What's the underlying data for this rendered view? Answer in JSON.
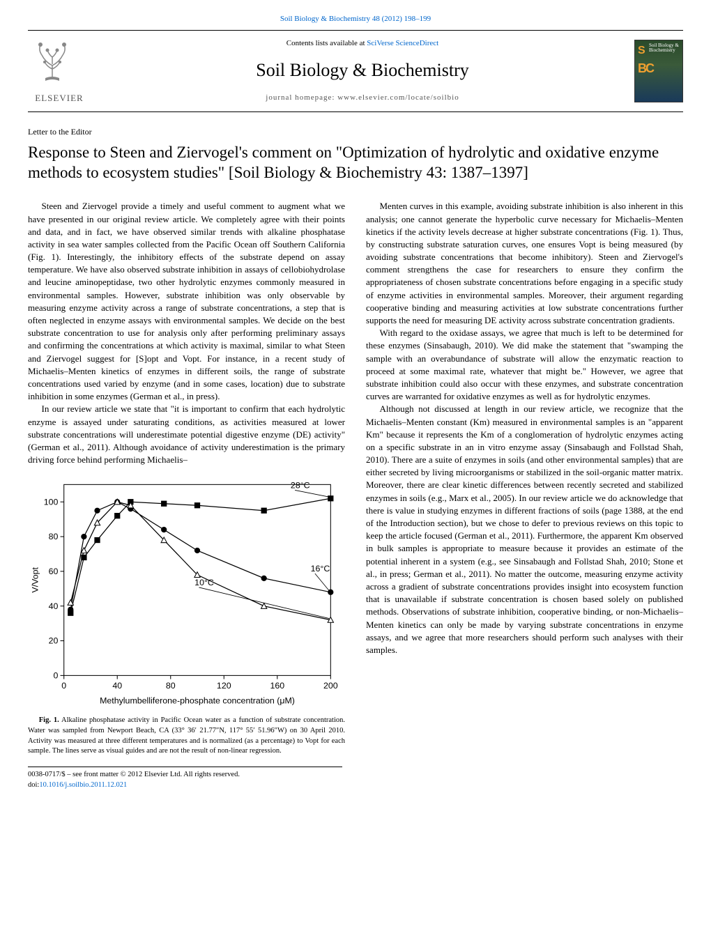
{
  "header": {
    "citation": "Soil Biology & Biochemistry 48 (2012) 198–199",
    "citation_link": "Soil Biology & Biochemistry 48 (2012) 198–199",
    "contents_prefix": "Contents lists available at ",
    "contents_link": "SciVerse ScienceDirect",
    "journal_title": "Soil Biology & Biochemistry",
    "homepage_label": "journal homepage: ",
    "homepage_url": "www.elsevier.com/locate/soilbio",
    "publisher": "ELSEVIER"
  },
  "article": {
    "type": "Letter to the Editor",
    "title": "Response to Steen and Ziervogel's comment on \"Optimization of hydrolytic and oxidative enzyme methods to ecosystem studies\" [Soil Biology & Biochemistry 43: 1387–1397]"
  },
  "body": {
    "left": {
      "p1": "Steen and Ziervogel provide a timely and useful comment to augment what we have presented in our original review article. We completely agree with their points and data, and in fact, we have observed similar trends with alkaline phosphatase activity in sea water samples collected from the Pacific Ocean off Southern California (Fig. 1). Interestingly, the inhibitory effects of the substrate depend on assay temperature. We have also observed substrate inhibition in assays of cellobiohydrolase and leucine aminopeptidase, two other hydrolytic enzymes commonly measured in environmental samples. However, substrate inhibition was only observable by measuring enzyme activity across a range of substrate concentrations, a step that is often neglected in enzyme assays with environmental samples. We decide on the best substrate concentration to use for analysis only after performing preliminary assays and confirming the concentrations at which activity is maximal, similar to what Steen and Ziervogel suggest for [S]opt and Vopt. For instance, in a recent study of Michaelis–Menten kinetics of enzymes in different soils, the range of substrate concentrations used varied by enzyme (and in some cases, location) due to substrate inhibition in some enzymes (German et al., in press).",
      "p2": "In our review article we state that \"it is important to confirm that each hydrolytic enzyme is assayed under saturating conditions, as activities measured at lower substrate concentrations will underestimate potential digestive enzyme (DE) activity\" (German et al., 2011). Although avoidance of activity underestimation is the primary driving force behind performing Michaelis–"
    },
    "right": {
      "p1": "Menten curves in this example, avoiding substrate inhibition is also inherent in this analysis; one cannot generate the hyperbolic curve necessary for Michaelis–Menten kinetics if the activity levels decrease at higher substrate concentrations (Fig. 1). Thus, by constructing substrate saturation curves, one ensures Vopt is being measured (by avoiding substrate concentrations that become inhibitory). Steen and Ziervogel's comment strengthens the case for researchers to ensure they confirm the appropriateness of chosen substrate concentrations before engaging in a specific study of enzyme activities in environmental samples. Moreover, their argument regarding cooperative binding and measuring activities at low substrate concentrations further supports the need for measuring DE activity across substrate concentration gradients.",
      "p2": "With regard to the oxidase assays, we agree that much is left to be determined for these enzymes (Sinsabaugh, 2010). We did make the statement that \"swamping the sample with an overabundance of substrate will allow the enzymatic reaction to proceed at some maximal rate, whatever that might be.\" However, we agree that substrate inhibition could also occur with these enzymes, and substrate concentration curves are warranted for oxidative enzymes as well as for hydrolytic enzymes.",
      "p3": "Although not discussed at length in our review article, we recognize that the Michaelis–Menten constant (Km) measured in environmental samples is an \"apparent Km\" because it represents the Km of a conglomeration of hydrolytic enzymes acting on a specific substrate in an in vitro enzyme assay (Sinsabaugh and Follstad Shah, 2010). There are a suite of enzymes in soils (and other environmental samples) that are either secreted by living microorganisms or stabilized in the soil-organic matter matrix. Moreover, there are clear kinetic differences between recently secreted and stabilized enzymes in soils (e.g., Marx et al., 2005). In our review article we do acknowledge that there is value in studying enzymes in different fractions of soils (page 1388, at the end of the Introduction section), but we chose to defer to previous reviews on this topic to keep the article focused (German et al., 2011). Furthermore, the apparent Km observed in bulk samples is appropriate to measure because it provides an estimate of the potential inherent in a system (e.g., see Sinsabaugh and Follstad Shah, 2010; Stone et al., in press; German et al., 2011). No matter the outcome, measuring enzyme activity across a gradient of substrate concentrations provides insight into ecosystem function that is unavailable if substrate concentration is chosen based solely on published methods. Observations of substrate inhibition, cooperative binding, or non-Michaelis–Menten kinetics can only be made by varying substrate concentrations in enzyme assays, and we agree that more researchers should perform such analyses with their samples."
    }
  },
  "figure": {
    "label": "Fig. 1.",
    "caption": "Alkaline phosphatase activity in Pacific Ocean water as a function of substrate concentration. Water was sampled from Newport Beach, CA (33° 36′ 21.77″N, 117° 55′ 51.96″W) on 30 April 2010. Activity was measured at three different temperatures and is normalized (as a percentage) to Vopt for each sample. The lines serve as visual guides and are not the result of non-linear regression.",
    "chart": {
      "type": "line-scatter",
      "xlabel": "Methylumbelliferone-phosphate concentration (μM)",
      "ylabel": "V/Vopt",
      "xlim": [
        0,
        200
      ],
      "ylim": [
        0,
        110
      ],
      "xticks": [
        0,
        40,
        80,
        120,
        160,
        200
      ],
      "yticks": [
        0,
        20,
        40,
        60,
        80,
        100
      ],
      "background_color": "#ffffff",
      "axis_color": "#000000",
      "series": [
        {
          "name": "28°C",
          "label_pos": [
            170,
            108
          ],
          "marker": "square",
          "marker_fill": "#000000",
          "line_color": "#000000",
          "x": [
            5,
            15,
            25,
            40,
            50,
            75,
            100,
            150,
            200
          ],
          "y": [
            36,
            68,
            78,
            92,
            100,
            99,
            98,
            95,
            102
          ]
        },
        {
          "name": "16°C",
          "label_pos": [
            185,
            60
          ],
          "marker": "circle",
          "marker_fill": "#000000",
          "line_color": "#000000",
          "x": [
            5,
            15,
            25,
            40,
            50,
            75,
            100,
            150,
            200
          ],
          "y": [
            38,
            80,
            95,
            100,
            96,
            84,
            72,
            56,
            48
          ]
        },
        {
          "name": "10°C",
          "label_pos": [
            98,
            52
          ],
          "marker": "triangle",
          "marker_fill": "none",
          "line_color": "#000000",
          "x": [
            5,
            15,
            25,
            40,
            50,
            75,
            100,
            150,
            200
          ],
          "y": [
            42,
            72,
            88,
            100,
            98,
            78,
            58,
            40,
            32
          ]
        }
      ]
    }
  },
  "footer": {
    "copyright": "0038-0717/$ – see front matter © 2012 Elsevier Ltd. All rights reserved.",
    "doi_prefix": "doi:",
    "doi": "10.1016/j.soilbio.2011.12.021"
  }
}
